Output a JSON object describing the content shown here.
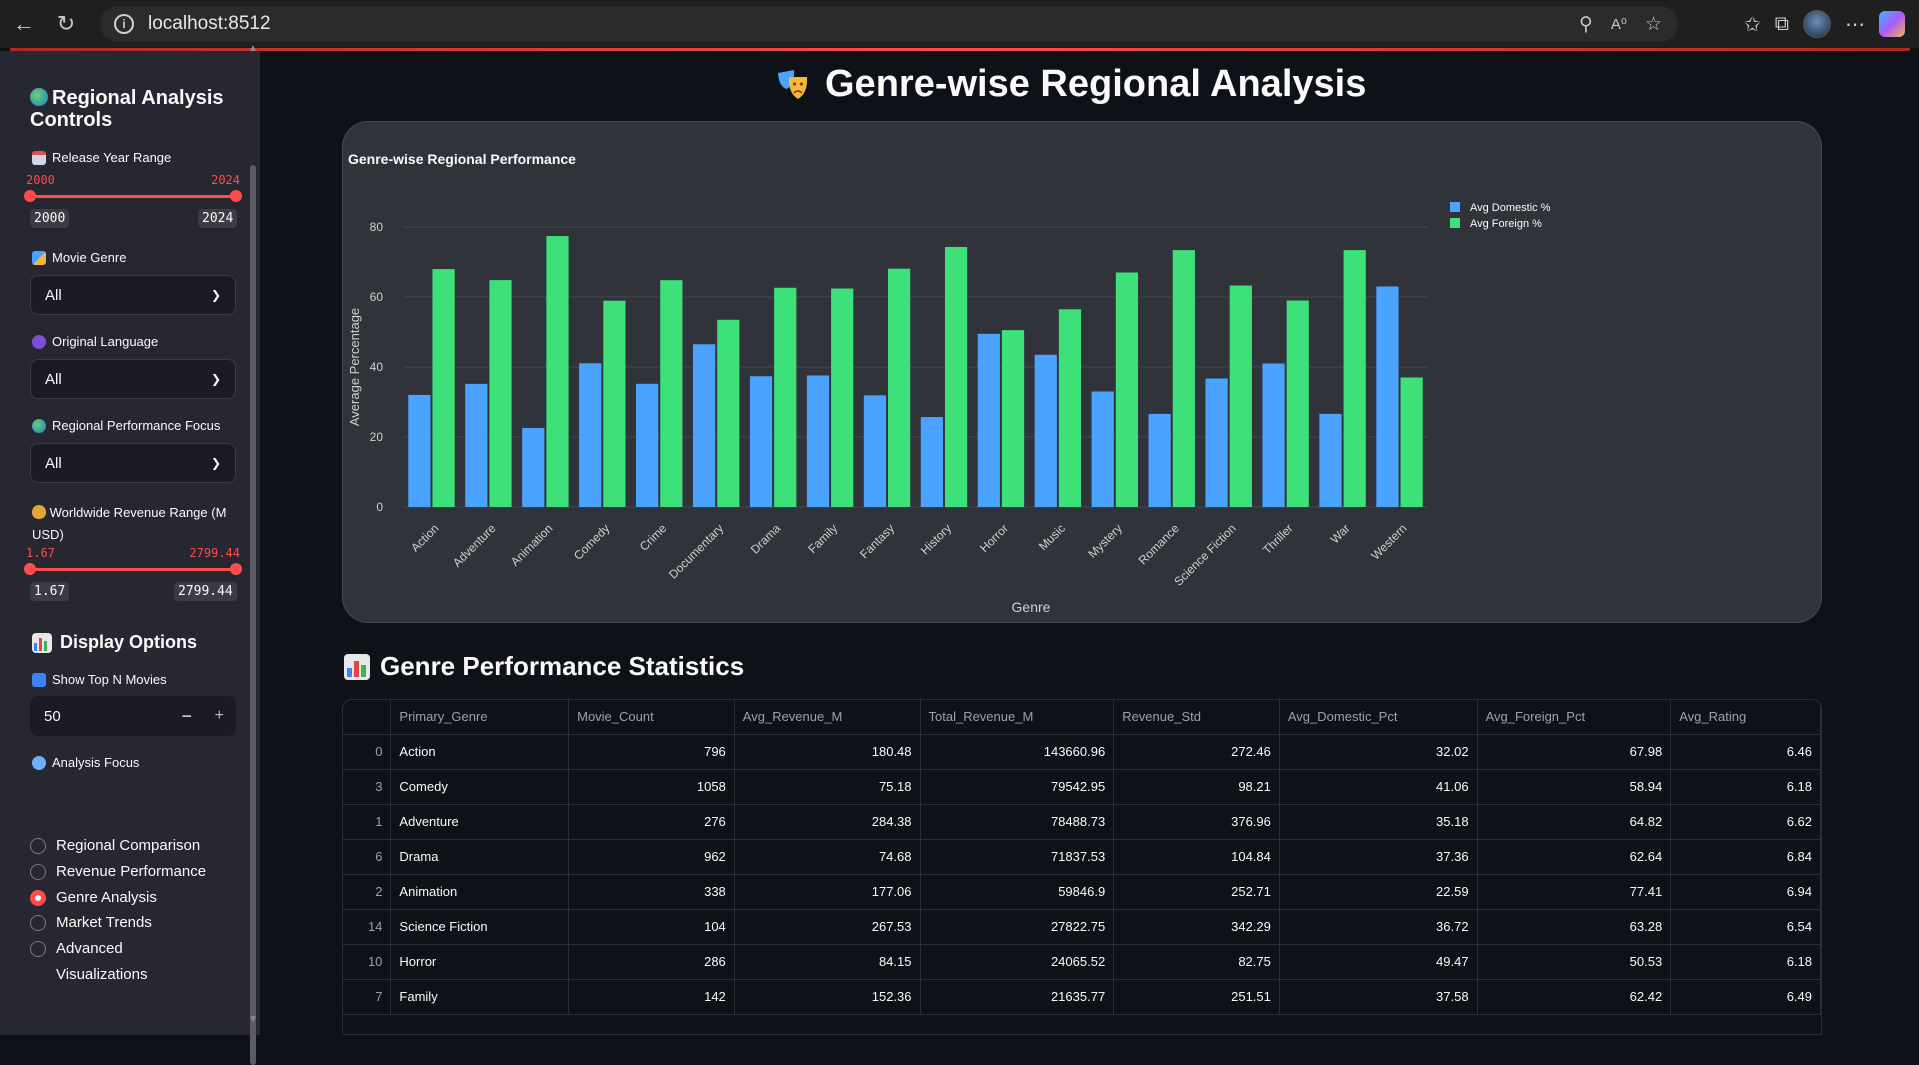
{
  "browser": {
    "url": "localhost:8512"
  },
  "sidebar": {
    "title": "Regional Analysis Controls",
    "release_year": {
      "label": "Release Year Range",
      "min_label": "2000",
      "max_label": "2024",
      "tick_min": "2000",
      "tick_max": "2024"
    },
    "genre": {
      "label": "Movie Genre",
      "value": "All"
    },
    "language": {
      "label": "Original Language",
      "value": "All"
    },
    "regional_focus": {
      "label": "Regional Performance Focus",
      "value": "All"
    },
    "revenue_range": {
      "label": "Worldwide Revenue Range (M USD)",
      "min_label": "1.67",
      "max_label": "2799.44",
      "tick_min": "1.67",
      "tick_max": "2799.44"
    },
    "display_options": "Display Options",
    "top_n": {
      "label": "Show Top N Movies",
      "value": "50",
      "minus": "−",
      "plus": "+"
    },
    "analysis_focus": {
      "label": "Analysis Focus",
      "options": [
        {
          "label": "Regional Comparison",
          "selected": false
        },
        {
          "label": "Revenue Performance",
          "selected": false
        },
        {
          "label": "Genre Analysis",
          "selected": true
        },
        {
          "label": "Market Trends",
          "selected": false
        },
        {
          "label": "Advanced Visualizations",
          "selected": false
        }
      ]
    }
  },
  "main": {
    "title": "Genre-wise Regional Analysis",
    "stats_heading": "Genre Performance Statistics"
  },
  "chart_data": {
    "type": "bar",
    "title": "Genre-wise Regional Performance",
    "xlabel": "Genre",
    "ylabel": "Average Percentage",
    "ylim": [
      0,
      80
    ],
    "yticks": [
      0,
      20,
      40,
      60,
      80
    ],
    "grid": true,
    "legend_position": "top-right",
    "categories": [
      "Action",
      "Adventure",
      "Animation",
      "Comedy",
      "Crime",
      "Documentary",
      "Drama",
      "Family",
      "Fantasy",
      "History",
      "Horror",
      "Music",
      "Mystery",
      "Romance",
      "Science Fiction",
      "Thriller",
      "War",
      "Western"
    ],
    "series": [
      {
        "name": "Avg Domestic %",
        "color": "#4aa3ff",
        "values": [
          32.02,
          35.18,
          22.59,
          41.06,
          35.2,
          46.5,
          37.36,
          37.58,
          31.9,
          25.7,
          49.47,
          43.5,
          33.0,
          26.6,
          36.72,
          41.0,
          26.6,
          63.0
        ]
      },
      {
        "name": "Avg Foreign %",
        "color": "#3ee07a",
        "values": [
          67.98,
          64.82,
          77.41,
          58.94,
          64.8,
          53.5,
          62.64,
          62.42,
          68.1,
          74.3,
          50.53,
          56.5,
          67.0,
          73.4,
          63.28,
          59.0,
          73.4,
          37.0
        ]
      }
    ]
  },
  "table": {
    "columns": [
      "",
      "Primary_Genre",
      "Movie_Count",
      "Avg_Revenue_M",
      "Total_Revenue_M",
      "Revenue_Std",
      "Avg_Domestic_Pct",
      "Avg_Foreign_Pct",
      "Avg_Rating"
    ],
    "rows": [
      [
        "0",
        "Action",
        "796",
        "180.48",
        "143660.96",
        "272.46",
        "32.02",
        "67.98",
        "6.46"
      ],
      [
        "3",
        "Comedy",
        "1058",
        "75.18",
        "79542.95",
        "98.21",
        "41.06",
        "58.94",
        "6.18"
      ],
      [
        "1",
        "Adventure",
        "276",
        "284.38",
        "78488.73",
        "376.96",
        "35.18",
        "64.82",
        "6.62"
      ],
      [
        "6",
        "Drama",
        "962",
        "74.68",
        "71837.53",
        "104.84",
        "37.36",
        "62.64",
        "6.84"
      ],
      [
        "2",
        "Animation",
        "338",
        "177.06",
        "59846.9",
        "252.71",
        "22.59",
        "77.41",
        "6.94"
      ],
      [
        "14",
        "Science Fiction",
        "104",
        "267.53",
        "27822.75",
        "342.29",
        "36.72",
        "63.28",
        "6.54"
      ],
      [
        "10",
        "Horror",
        "286",
        "84.15",
        "24065.52",
        "82.75",
        "49.47",
        "50.53",
        "6.18"
      ],
      [
        "7",
        "Family",
        "142",
        "152.36",
        "21635.77",
        "251.51",
        "37.58",
        "62.42",
        "6.49"
      ]
    ]
  }
}
